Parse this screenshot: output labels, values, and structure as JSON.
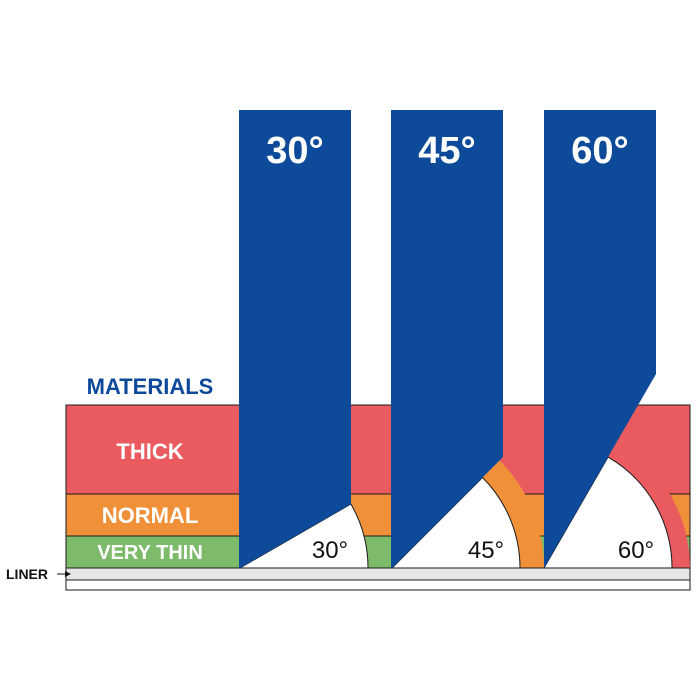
{
  "heading": "MATERIALS",
  "layers": {
    "thick": {
      "label": "THICK",
      "color": "#ea5b5f"
    },
    "normal": {
      "label": "NORMAL",
      "color": "#f0913a"
    },
    "very_thin": {
      "label": "VERY THIN",
      "color": "#7dba6a"
    }
  },
  "liner": {
    "label": "LINER",
    "color": "#e6e6e6"
  },
  "blade_color": "#0e4a9a",
  "blades": [
    {
      "title": "30°",
      "angle_label": "30°"
    },
    {
      "title": "45°",
      "angle_label": "45°"
    },
    {
      "title": "60°",
      "angle_label": "60°"
    }
  ]
}
